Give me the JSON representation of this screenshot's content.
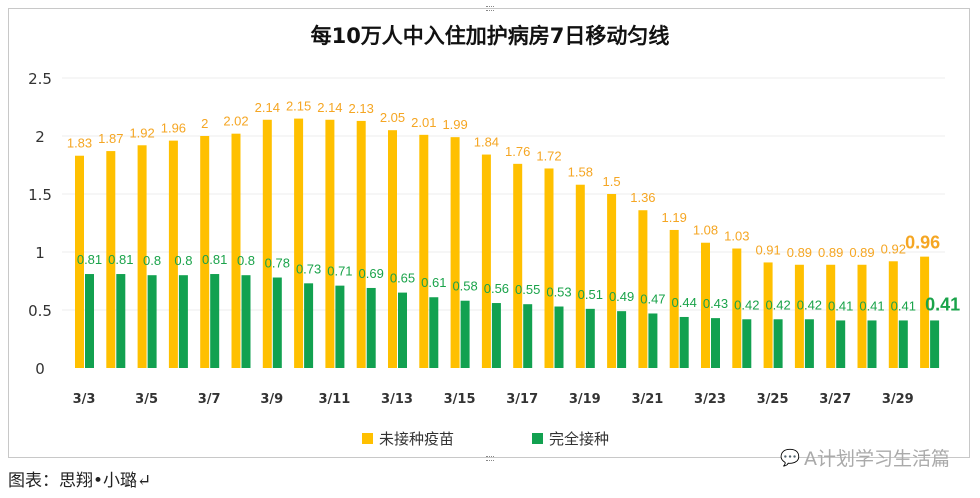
{
  "chart_data": {
    "type": "bar",
    "title": "每10万人中入住加护病房7日移动匀线",
    "categories": [
      "3/3",
      "3/4",
      "3/5",
      "3/6",
      "3/7",
      "3/8",
      "3/9",
      "3/10",
      "3/11",
      "3/12",
      "3/13",
      "3/14",
      "3/15",
      "3/16",
      "3/17",
      "3/18",
      "3/19",
      "3/20",
      "3/21",
      "3/22",
      "3/23",
      "3/24",
      "3/25",
      "3/26",
      "3/27",
      "3/28",
      "3/29",
      "3/30"
    ],
    "x_tick_labels": [
      "3/3",
      "3/5",
      "3/7",
      "3/9",
      "3/11",
      "3/13",
      "3/15",
      "3/17",
      "3/19",
      "3/21",
      "3/23",
      "3/25",
      "3/27",
      "3/29"
    ],
    "y_ticks": [
      "0",
      "0.5",
      "1",
      "1.5",
      "2",
      "2.5"
    ],
    "ylim": [
      0,
      2.5
    ],
    "grid": true,
    "legend_position": "bottom",
    "series": [
      {
        "name": "未接种疫苗",
        "color": "#FFC000",
        "label_color": "#F5A623",
        "values": [
          1.83,
          1.87,
          1.92,
          1.96,
          2,
          2.02,
          2.14,
          2.15,
          2.14,
          2.13,
          2.05,
          2.01,
          1.99,
          1.84,
          1.76,
          1.72,
          1.58,
          1.5,
          1.36,
          1.19,
          1.08,
          1.03,
          0.91,
          0.89,
          0.89,
          0.89,
          0.92,
          0.96
        ]
      },
      {
        "name": "完全接种",
        "color": "#12A150",
        "label_color": "#1AA34A",
        "values": [
          0.81,
          0.81,
          0.8,
          0.8,
          0.81,
          0.8,
          0.78,
          0.73,
          0.71,
          0.69,
          0.65,
          0.61,
          0.58,
          0.56,
          0.55,
          0.53,
          0.51,
          0.49,
          0.47,
          0.44,
          0.43,
          0.42,
          0.42,
          0.42,
          0.41,
          0.41,
          0.41,
          0.41
        ]
      }
    ]
  },
  "footer": "图表：思翔•小璐↵",
  "watermark": "A计划学习生活篇"
}
